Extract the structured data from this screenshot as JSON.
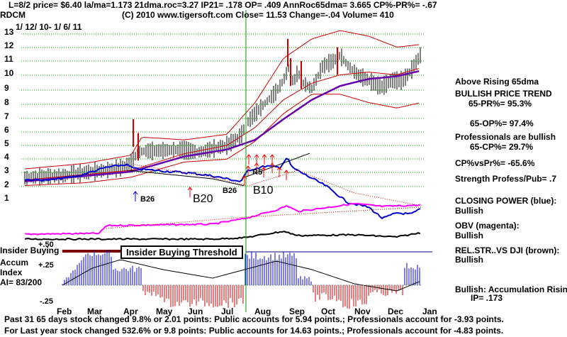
{
  "header": {
    "line1": "L=8/2  price= $6.40  la/ma=1.173 21dma.roc=3.27 IP21= .178 OP= .409 AnnRoc65dma= 3.665 CP%-PR%= -.67",
    "ticker": "RDCM",
    "line2": "(C) 2010 www.tigersoft.com    Close=  11.53  Change=-.04 Volume= 410",
    "date_range": "1/ 12/ 10-  1/ 6/ 11"
  },
  "price_axis_labels": [
    "13",
    "12",
    "11",
    "10",
    "9",
    "8",
    "7",
    "6",
    "5",
    "4",
    "3",
    "2",
    "1"
  ],
  "months": [
    "Feb",
    "Mar",
    "Apr",
    "May",
    "Jun",
    "Jul",
    "Aug",
    "Sep",
    "Oct",
    "Nov",
    "Dec",
    "Jan"
  ],
  "signals": {
    "b26_a": "B26",
    "b20": "B20",
    "b26_b": "B26",
    "b10": "B10",
    "r5": "R5"
  },
  "indicator_labels": {
    "insider_buying": "Insider Buying",
    "threshold": "Insider Buying Threshold",
    "plus50": "+.50",
    "plus25": "+.25",
    "minus25": "-.25",
    "accum": "Accum",
    "index": "Index",
    "ai": "AI= 83/200"
  },
  "side_panel": {
    "above_rising": "Above Rising 65dma",
    "bullish_trend": "BULLISH PRICE TREND",
    "pr": "65-PR%= 95.3%",
    "op": "65-OP%= 97.4%",
    "professionals": "Professionals are bullish",
    "cp": "65-CP%= 29.7%",
    "cpvspr": "CP%vsPr%= -65.6%",
    "strength": "Strength Profess/Pub= .7",
    "closing_power": "CLOSING POWER (blue):",
    "closing_power_value": "Bullish",
    "obv": "OBV (magenta):",
    "obv_value": "Bullish",
    "relstr": "REL.STR..VS DJI (brown):",
    "relstr_value": "Bullish",
    "accum_rising": "Bullish: Accumulation Rising",
    "ip": "IP=  .173"
  },
  "footer": {
    "line1": "Past 31 65 days stock changed  9.8% or  2.01 points:  Public accounts for  5.94 points.;  Professionals account for -3.93 points.",
    "line2": "For Last year stock changed  532.6% or  9.8 points:  Public accounts for  14.63 points.;  Professionals account for -4.83 points."
  },
  "colors": {
    "price": "#000000",
    "band": "#cc0000",
    "ma": "#6600aa",
    "closing_power": "#0000cc",
    "obv": "#ff00ff",
    "relstr": "#000000",
    "signal": "#ff0000",
    "vline": "#009900",
    "grid": "#00aa00"
  }
}
